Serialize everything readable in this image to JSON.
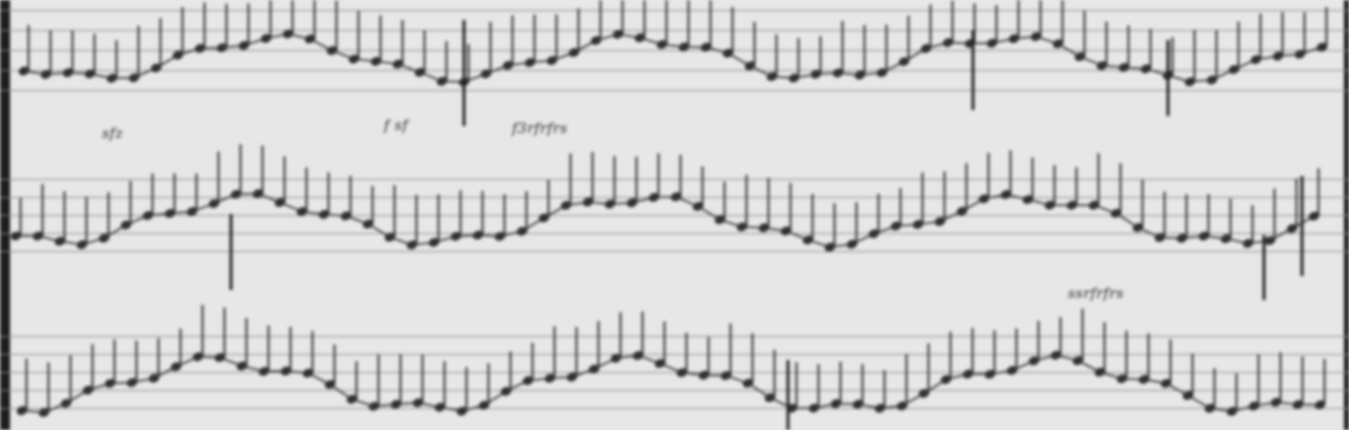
{
  "annotations": {
    "top_left": "sfz",
    "top_center_a": "f sf",
    "top_center_b": "f3rfrfrs",
    "bottom_right": "ssrfrfrs"
  }
}
